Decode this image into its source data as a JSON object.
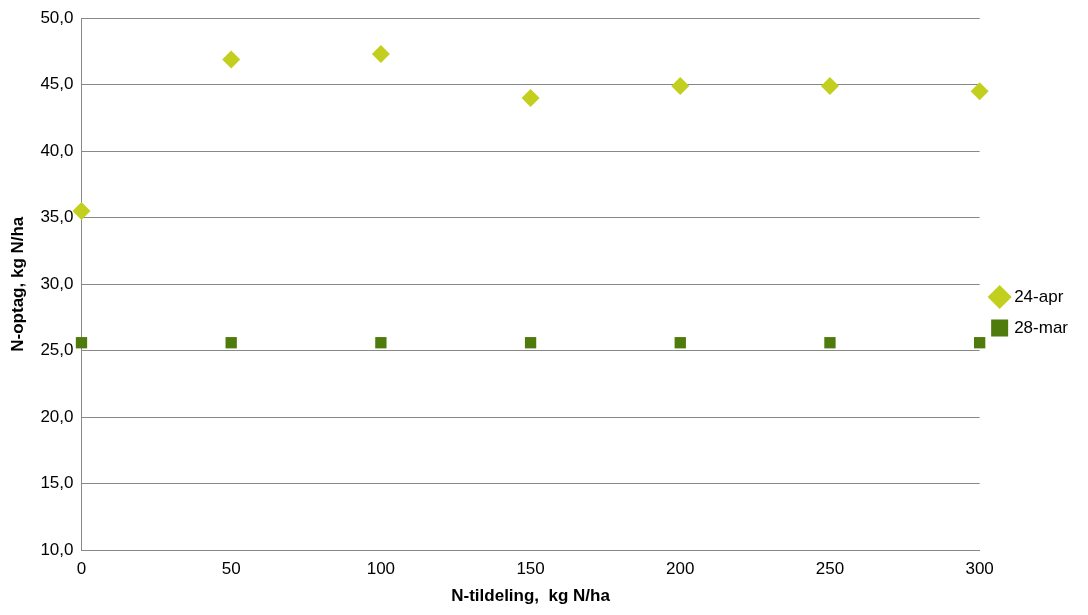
{
  "chart_data": {
    "type": "scatter",
    "xlabel": "N-tildeling,  kg N/ha",
    "ylabel": "N-optag, kg N/ha",
    "x": [
      0,
      50,
      100,
      150,
      200,
      250,
      300
    ],
    "series": [
      {
        "name": "24-apr",
        "color": "#c3cf1e",
        "marker": "diamond",
        "values": [
          35.5,
          46.9,
          47.3,
          44.0,
          44.9,
          44.9,
          44.5
        ]
      },
      {
        "name": "28-mar",
        "color": "#4f7a0c",
        "marker": "square",
        "values": [
          25.6,
          25.6,
          25.6,
          25.6,
          25.6,
          25.6,
          25.6
        ]
      }
    ],
    "xlim": [
      0,
      300
    ],
    "xticks": [
      0,
      50,
      100,
      150,
      200,
      250,
      300
    ],
    "ylim": [
      10,
      50
    ],
    "yticks": [
      {
        "value": 10,
        "label": "10,0"
      },
      {
        "value": 15,
        "label": "15,0"
      },
      {
        "value": 20,
        "label": "20,0"
      },
      {
        "value": 25,
        "label": "25,0"
      },
      {
        "value": 30,
        "label": "30,0"
      },
      {
        "value": 35,
        "label": "35,0"
      },
      {
        "value": 40,
        "label": "40,0"
      },
      {
        "value": 45,
        "label": "45,0"
      },
      {
        "value": 50,
        "label": "50,0"
      }
    ],
    "grid": "y",
    "legend": "right"
  }
}
